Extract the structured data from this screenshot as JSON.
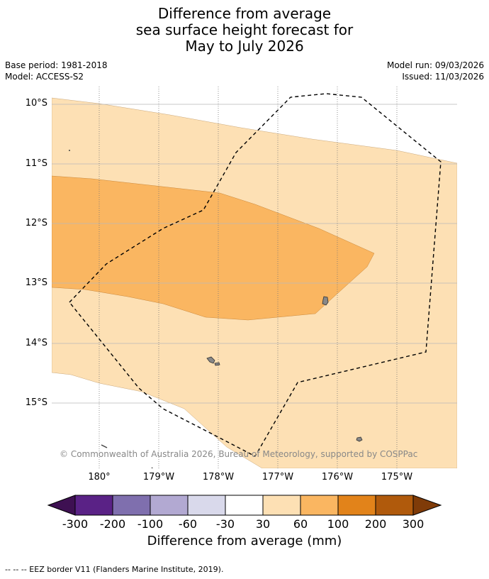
{
  "title": {
    "line1": "Difference from average",
    "line2": "sea surface height forecast for",
    "line3": "May to July 2026"
  },
  "meta": {
    "base_period": "Base period: 1981-2018",
    "model": "Model: ACCESS-S2",
    "model_run": "Model run: 09/03/2026",
    "issued": "Issued: 11/03/2026"
  },
  "map": {
    "lat_labels": [
      "10°S",
      "11°S",
      "12°S",
      "13°S",
      "14°S",
      "15°S"
    ],
    "lon_labels": [
      "180°",
      "179°W",
      "178°W",
      "177°W",
      "176°W",
      "175°W"
    ],
    "copyright": "© Commonwealth of Australia 2026, Bureau of Meteorology, supported by COSPPac",
    "regions": [
      {
        "category": "30 to 60",
        "color": "#fde0b4"
      },
      {
        "category": "60 to 100",
        "color": "#fab661"
      }
    ],
    "land_color": "#888888",
    "eez_line": "dashed"
  },
  "colorbar": {
    "ticks": [
      "-300",
      "-200",
      "-100",
      "-60",
      "-30",
      "30",
      "60",
      "100",
      "200",
      "300"
    ],
    "colors": [
      "#3e1052",
      "#5a2286",
      "#7f6fae",
      "#b2a9d2",
      "#d9d9eb",
      "#ffffff",
      "#fde0b4",
      "#fab661",
      "#e2831a",
      "#b05a0c",
      "#7f3b08"
    ],
    "label": "Difference from average (mm)"
  },
  "footer": "--  --  -- EEZ border V11 (Flanders Marine Institute, 2019)."
}
